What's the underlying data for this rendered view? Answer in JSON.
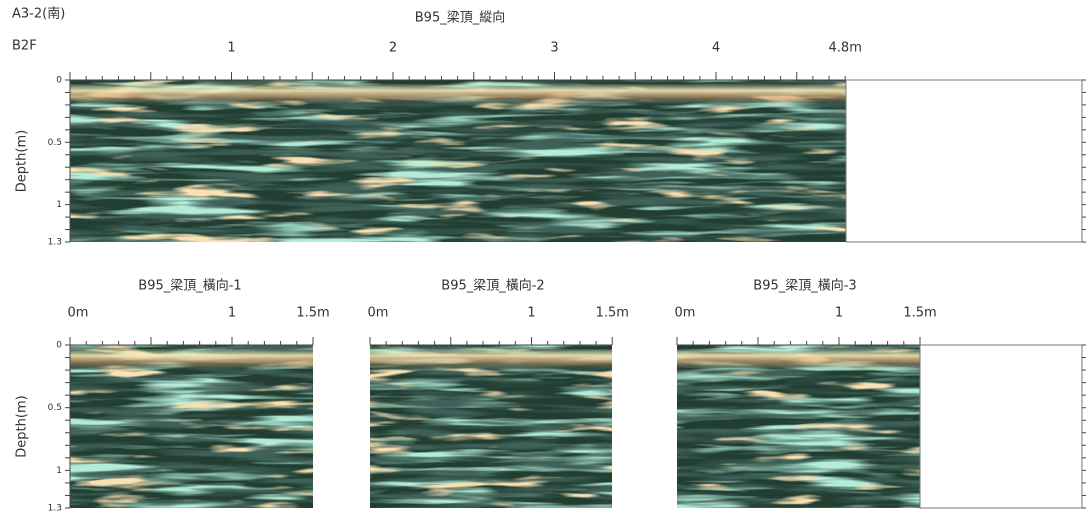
{
  "header": {
    "location": "A3-2(南)",
    "floor": "B2F"
  },
  "profiles": [
    {
      "title": "B95_梁頂_縱向",
      "x_labels": [
        "1",
        "2",
        "3",
        "4",
        "4.8m"
      ],
      "y_labels": [
        "0",
        "0.5",
        "1",
        "1.3"
      ],
      "y_axis_label": "Depth(m)"
    },
    {
      "title": "B95_梁頂_橫向-1",
      "x_labels": [
        "0m",
        "1",
        "1.5m"
      ],
      "y_labels": [
        "0",
        "0.5",
        "1",
        "1.3"
      ],
      "y_axis_label": "Depth(m)"
    },
    {
      "title": "B95_梁頂_橫向-2",
      "x_labels": [
        "0m",
        "1",
        "1.5m"
      ]
    },
    {
      "title": "B95_梁頂_橫向-3",
      "x_labels": [
        "0m",
        "1",
        "1.5m"
      ]
    }
  ]
}
